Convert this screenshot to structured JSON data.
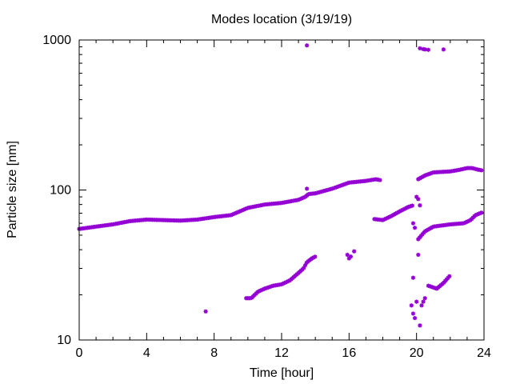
{
  "chart_data": {
    "type": "scatter",
    "title": "Modes location (3/19/19)",
    "xlabel": "Time [hour]",
    "ylabel": "Particle size [nm]",
    "xlim": [
      0,
      24
    ],
    "ylim": [
      10,
      1000
    ],
    "yscale": "log",
    "grid": false,
    "xticks": [
      "0",
      "4",
      "8",
      "12",
      "16",
      "20",
      "24"
    ],
    "yticks": [
      "10",
      "100",
      "1000"
    ],
    "series_color": "#9400d3",
    "mode1_anchors": [
      [
        0,
        55
      ],
      [
        1,
        57
      ],
      [
        2,
        59
      ],
      [
        3,
        62
      ],
      [
        4,
        63.5
      ],
      [
        5,
        63
      ],
      [
        6,
        62.5
      ],
      [
        7,
        63.5
      ],
      [
        8,
        66
      ],
      [
        9,
        68
      ],
      [
        10,
        76
      ],
      [
        11,
        80
      ],
      [
        12,
        82
      ],
      [
        13,
        86
      ],
      [
        13.4,
        90
      ],
      [
        13.6,
        94
      ],
      [
        14,
        95
      ],
      [
        15,
        102
      ],
      [
        16,
        112
      ],
      [
        17,
        115
      ],
      [
        17.6,
        118
      ],
      [
        17.9,
        116
      ]
    ],
    "mode2_anchors": [
      [
        9.9,
        19
      ],
      [
        10.2,
        19
      ],
      [
        10.6,
        21
      ],
      [
        11,
        22
      ],
      [
        11.5,
        23
      ],
      [
        12,
        23.5
      ],
      [
        12.5,
        25
      ],
      [
        13,
        28
      ],
      [
        13.3,
        30
      ],
      [
        13.5,
        33
      ],
      [
        13.8,
        35
      ],
      [
        14,
        36
      ]
    ],
    "mode3_anchors": [
      [
        17.5,
        64
      ],
      [
        18,
        63
      ],
      [
        18.5,
        67
      ],
      [
        19,
        72
      ],
      [
        19.5,
        77
      ],
      [
        19.8,
        79
      ]
    ],
    "mode4_anchors": [
      [
        20.1,
        47
      ],
      [
        20.5,
        53
      ],
      [
        21,
        57
      ],
      [
        22,
        59
      ],
      [
        22.8,
        60
      ],
      [
        23.2,
        63
      ],
      [
        23.5,
        68
      ],
      [
        23.9,
        71
      ]
    ],
    "mode5_anchors": [
      [
        20.1,
        118
      ],
      [
        20.5,
        125
      ],
      [
        21,
        131
      ],
      [
        22,
        133
      ],
      [
        22.5,
        136
      ],
      [
        23,
        140
      ],
      [
        23.3,
        140
      ],
      [
        23.6,
        137
      ],
      [
        23.9,
        135
      ]
    ],
    "mode6_anchors": [
      [
        20.7,
        23
      ],
      [
        21.2,
        22
      ],
      [
        21.6,
        24
      ],
      [
        22.0,
        27
      ]
    ],
    "extra_points": [
      [
        7.5,
        15.5
      ],
      [
        13.5,
        920
      ],
      [
        13.5,
        102
      ],
      [
        15.9,
        37
      ],
      [
        16,
        35
      ],
      [
        16.1,
        36
      ],
      [
        16.3,
        39
      ],
      [
        19.7,
        17
      ],
      [
        19.8,
        15
      ],
      [
        19.9,
        14
      ],
      [
        19.8,
        26
      ],
      [
        19.8,
        60
      ],
      [
        19.9,
        56
      ],
      [
        20,
        90
      ],
      [
        20.1,
        87
      ],
      [
        20.2,
        79
      ],
      [
        20,
        18
      ],
      [
        20.1,
        37
      ],
      [
        20.2,
        12.5
      ],
      [
        20.3,
        17
      ],
      [
        20.4,
        18
      ],
      [
        20.5,
        19
      ],
      [
        20.2,
        880
      ],
      [
        20.4,
        870
      ],
      [
        20.5,
        865
      ],
      [
        20.7,
        860
      ],
      [
        21.6,
        865
      ]
    ]
  }
}
